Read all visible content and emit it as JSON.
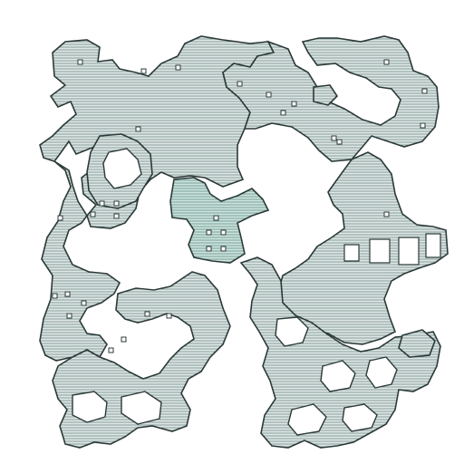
{
  "map": {
    "wall_color": "#c9d6d4",
    "hub_color": "#b7d3cd",
    "line_color": "#2b3a38",
    "background_color": "#ffffff"
  }
}
